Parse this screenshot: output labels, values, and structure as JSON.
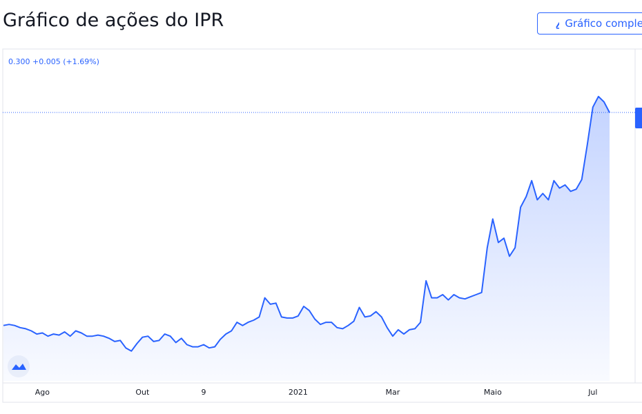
{
  "chart_data": {
    "type": "line",
    "title": "Gráfico de ações do IPR",
    "button": "Gráfico completo",
    "subtitle": "0.300 +0.005 (+1.69%)",
    "color": "#2962ff",
    "ylim": [
      0.048,
      0.359
    ],
    "last_value_line": true,
    "categories": [
      null,
      null,
      null,
      null,
      null,
      null,
      null,
      "Ago",
      null,
      null,
      null,
      null,
      null,
      null,
      null,
      null,
      null,
      null,
      null,
      null,
      null,
      null,
      null,
      null,
      null,
      "Out",
      null,
      null,
      null,
      null,
      null,
      null,
      null,
      null,
      null,
      null,
      "9",
      null,
      null,
      null,
      null,
      null,
      null,
      null,
      null,
      null,
      null,
      null,
      null,
      null,
      null,
      null,
      null,
      "2021",
      null,
      null,
      null,
      null,
      null,
      null,
      null,
      null,
      null,
      null,
      null,
      null,
      null,
      null,
      null,
      null,
      "Mar",
      null,
      null,
      null,
      null,
      null,
      null,
      null,
      null,
      null,
      null,
      null,
      null,
      null,
      null,
      null,
      null,
      null,
      "Maio",
      null,
      null,
      null,
      null,
      null,
      null,
      null,
      null,
      null,
      null,
      null,
      null,
      null,
      null,
      null,
      null,
      null,
      "Jul",
      null,
      null,
      null
    ],
    "values": [
      0.1,
      0.101,
      0.1,
      0.098,
      0.097,
      0.095,
      0.092,
      0.093,
      0.09,
      0.092,
      0.091,
      0.094,
      0.09,
      0.095,
      0.093,
      0.09,
      0.09,
      0.091,
      0.09,
      0.088,
      0.085,
      0.086,
      0.079,
      0.076,
      0.083,
      0.089,
      0.09,
      0.085,
      0.086,
      0.092,
      0.09,
      0.084,
      0.088,
      0.082,
      0.08,
      0.08,
      0.082,
      0.079,
      0.08,
      0.087,
      0.092,
      0.095,
      0.103,
      0.1,
      0.103,
      0.105,
      0.108,
      0.126,
      0.12,
      0.121,
      0.108,
      0.107,
      0.107,
      0.109,
      0.118,
      0.114,
      0.106,
      0.101,
      0.103,
      0.103,
      0.098,
      0.097,
      0.1,
      0.104,
      0.117,
      0.108,
      0.109,
      0.113,
      0.108,
      0.098,
      0.09,
      0.096,
      0.092,
      0.096,
      0.097,
      0.103,
      0.142,
      0.126,
      0.126,
      0.129,
      0.124,
      0.129,
      0.126,
      0.125,
      0.127,
      0.129,
      0.131,
      0.173,
      0.2,
      0.178,
      0.182,
      0.165,
      0.173,
      0.211,
      0.221,
      0.236,
      0.218,
      0.224,
      0.218,
      0.236,
      0.229,
      0.232,
      0.226,
      0.228,
      0.237,
      0.27,
      0.305,
      0.315,
      0.31,
      0.3
    ]
  }
}
